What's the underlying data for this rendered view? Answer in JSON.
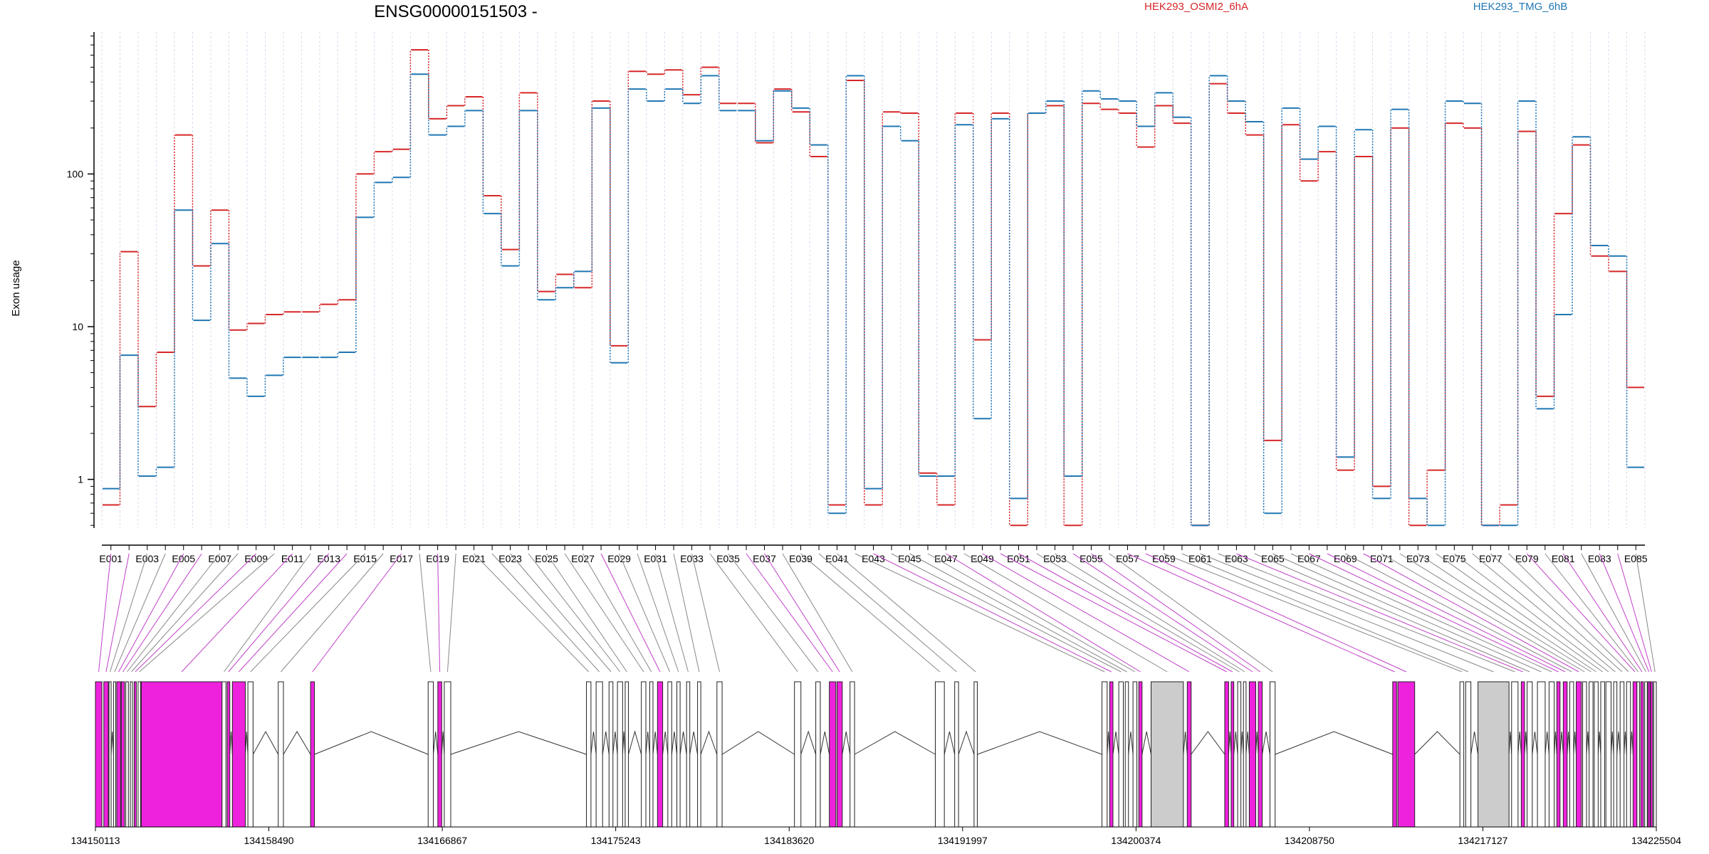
{
  "chart_data": {
    "type": "line",
    "title": "ENSG00000151503 -",
    "ylabel": "Exon usage",
    "xlabel": "",
    "yscale": "log",
    "ylim": [
      0.48,
      850
    ],
    "yticks": [
      1,
      10,
      100
    ],
    "ytick_labels": [
      "1",
      "10",
      "100"
    ],
    "exon_ticks": [
      "E001",
      "E003",
      "E005",
      "E007",
      "E009",
      "E011",
      "E013",
      "E015",
      "E017",
      "E019",
      "E021",
      "E023",
      "E025",
      "E027",
      "E029",
      "E031",
      "E033",
      "E035",
      "E037",
      "E039",
      "E041",
      "E043",
      "E045",
      "E047",
      "E049",
      "E051",
      "E053",
      "E055",
      "E057",
      "E059",
      "E061",
      "E063",
      "E065",
      "E067",
      "E069",
      "E071",
      "E073",
      "E075",
      "E077",
      "E079",
      "E081",
      "E083",
      "E085"
    ],
    "legend": [
      {
        "name": "HEK293_OSMI2_6hA",
        "color": "#d62728"
      },
      {
        "name": "HEK293_TMG_6hB",
        "color": "#1f77b4"
      }
    ],
    "series": [
      {
        "name": "HEK293_OSMI2_6hA",
        "color": "#d62728",
        "values": [
          0.68,
          31,
          3,
          6.8,
          180,
          25,
          58,
          9.5,
          10.5,
          12,
          12.5,
          12.5,
          14,
          15,
          100,
          140,
          145,
          650,
          230,
          280,
          320,
          72,
          32,
          340,
          17,
          22,
          18,
          300,
          7.5,
          470,
          450,
          480,
          330,
          500,
          290,
          290,
          160,
          360,
          255,
          130,
          0.68,
          410,
          0.68,
          255,
          250,
          1.1,
          0.68,
          250,
          8.2,
          250,
          0.5,
          250,
          280,
          0.5,
          290,
          265,
          250,
          150,
          280,
          215,
          0.5,
          390,
          250,
          180,
          1.8,
          210,
          90,
          140,
          1.15,
          130,
          0.9,
          200,
          0.5,
          1.15,
          215,
          200,
          0.5,
          0.68,
          190,
          3.5,
          55,
          155,
          29,
          23,
          4
        ]
      },
      {
        "name": "HEK293_TMG_6hB",
        "color": "#1f77b4",
        "values": [
          0.87,
          6.5,
          1.05,
          1.2,
          58,
          11,
          35,
          4.6,
          3.5,
          4.8,
          6.3,
          6.3,
          6.3,
          6.8,
          52,
          88,
          95,
          450,
          180,
          205,
          260,
          55,
          25,
          260,
          15,
          18,
          23,
          270,
          5.8,
          360,
          300,
          360,
          290,
          440,
          260,
          260,
          165,
          350,
          270,
          155,
          0.6,
          440,
          0.87,
          205,
          165,
          1.05,
          1.05,
          210,
          2.5,
          230,
          0.75,
          250,
          300,
          1.05,
          350,
          310,
          300,
          205,
          340,
          235,
          0.5,
          440,
          300,
          220,
          0.6,
          270,
          125,
          205,
          1.4,
          195,
          0.75,
          265,
          0.75,
          0.5,
          300,
          290,
          0.5,
          0.5,
          300,
          2.9,
          12,
          175,
          34,
          29,
          1.2
        ]
      }
    ],
    "genomic_ticks": [
      "134150113",
      "134158490",
      "134166867",
      "134175243",
      "134183620",
      "134191997",
      "134200374",
      "134208750",
      "134217127",
      "134225504"
    ],
    "genomic_range": [
      134150113,
      134225504
    ],
    "highlighted_exons": [
      1,
      2,
      5,
      6,
      9,
      11,
      13,
      14,
      17,
      19,
      28,
      36,
      37,
      43,
      47,
      49,
      50,
      51,
      54,
      55,
      57,
      58,
      63,
      67,
      68,
      70,
      79,
      81,
      83,
      84
    ]
  }
}
